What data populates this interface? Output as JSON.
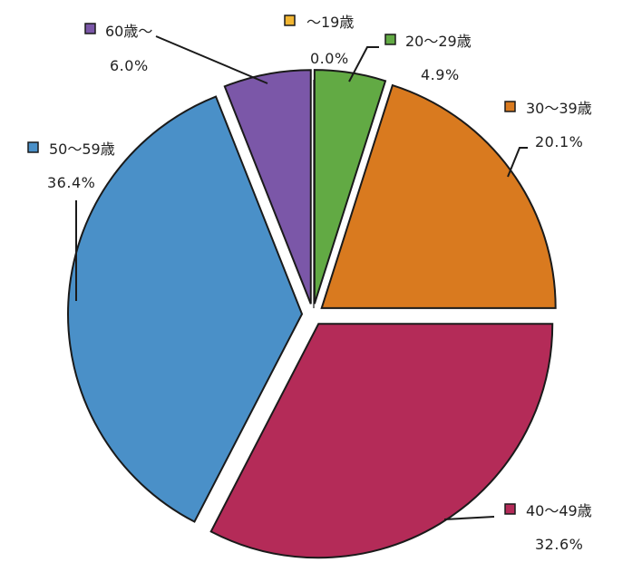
{
  "chart_data": {
    "type": "pie",
    "title": "",
    "start_angle_deg": 0,
    "direction": "clockwise",
    "exploded": true,
    "categories": [
      "～19歳",
      "20～29歳",
      "30～39歳",
      "40～49歳",
      "50～59歳",
      "60歳～"
    ],
    "values": [
      0.0,
      4.9,
      20.1,
      32.6,
      36.4,
      6.0
    ],
    "value_labels": [
      "0.0%",
      "4.9%",
      "20.1%",
      "32.6%",
      "36.4%",
      "6.0%"
    ],
    "colors": [
      "#f2b632",
      "#62aa44",
      "#d97a1f",
      "#b42b58",
      "#4a90c8",
      "#7b57a8"
    ],
    "legend": "inline-labels"
  },
  "labels": [
    {
      "name": "～19歳",
      "pct": "0.0%"
    },
    {
      "name": "20～29歳",
      "pct": "4.9%"
    },
    {
      "name": "30～39歳",
      "pct": "20.1%"
    },
    {
      "name": "40～49歳",
      "pct": "32.6%"
    },
    {
      "name": "50～59歳",
      "pct": "36.4%"
    },
    {
      "name": "60歳～",
      "pct": "6.0%"
    }
  ]
}
